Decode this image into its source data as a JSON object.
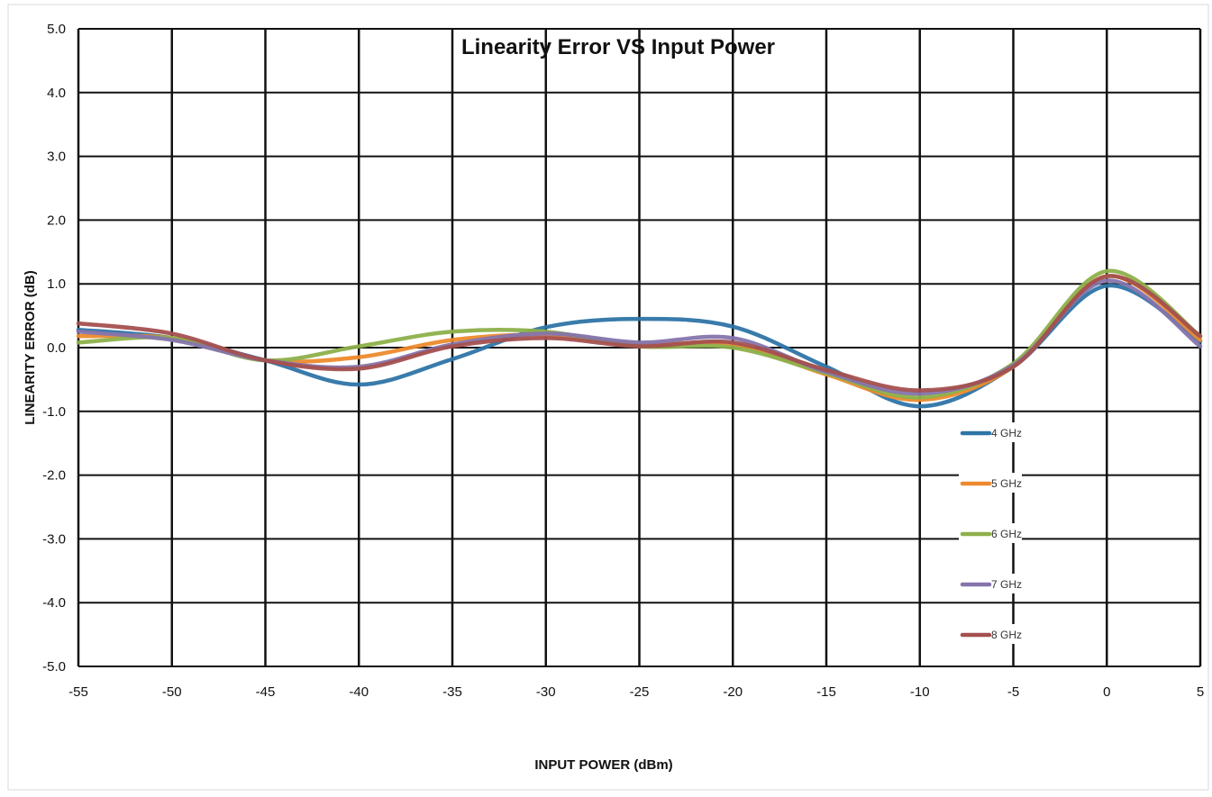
{
  "chart_data": {
    "type": "line",
    "title": "Linearity Error VS Input Power",
    "xlabel": "INPUT POWER (dBm)",
    "ylabel": "LINEARITY ERROR (dB)",
    "xlim": [
      -55,
      5
    ],
    "ylim": [
      -5.0,
      5.0
    ],
    "x_ticks": [
      "-55",
      "-50",
      "-45",
      "-40",
      "-35",
      "-30",
      "-25",
      "-20",
      "-15",
      "-10",
      "-5",
      "0",
      "5"
    ],
    "y_ticks": [
      "5.0",
      "4.0",
      "3.0",
      "2.0",
      "1.0",
      "0.0",
      "-1.0",
      "-2.0",
      "-3.0",
      "-4.0",
      "-5.0"
    ],
    "grid": true,
    "legend_position": "right",
    "x": [
      -55,
      -50,
      -45,
      -40,
      -35,
      -30,
      -25,
      -20,
      -15,
      -10,
      -5,
      0,
      5
    ],
    "series": [
      {
        "name": "4 GHz",
        "color": "#2e74a6",
        "values": [
          0.28,
          0.15,
          -0.2,
          -0.58,
          -0.18,
          0.32,
          0.45,
          0.33,
          -0.3,
          -0.92,
          -0.3,
          0.97,
          0.1
        ]
      },
      {
        "name": "5 GHz",
        "color": "#ed8a2d",
        "values": [
          0.18,
          0.15,
          -0.2,
          -0.15,
          0.12,
          0.2,
          0.05,
          0.05,
          -0.42,
          -0.82,
          -0.3,
          1.12,
          0.12
        ]
      },
      {
        "name": "6 GHz",
        "color": "#8db04a",
        "values": [
          0.08,
          0.15,
          -0.2,
          0.02,
          0.25,
          0.25,
          0.02,
          0.0,
          -0.4,
          -0.78,
          -0.25,
          1.2,
          0.18
        ]
      },
      {
        "name": "7 GHz",
        "color": "#8574ac",
        "values": [
          0.25,
          0.12,
          -0.2,
          -0.3,
          0.05,
          0.22,
          0.08,
          0.15,
          -0.38,
          -0.72,
          -0.28,
          1.05,
          0.02
        ]
      },
      {
        "name": "8 GHz",
        "color": "#a4504f",
        "values": [
          0.38,
          0.22,
          -0.2,
          -0.33,
          0.02,
          0.15,
          0.02,
          0.08,
          -0.35,
          -0.67,
          -0.3,
          1.12,
          0.18
        ]
      }
    ]
  }
}
